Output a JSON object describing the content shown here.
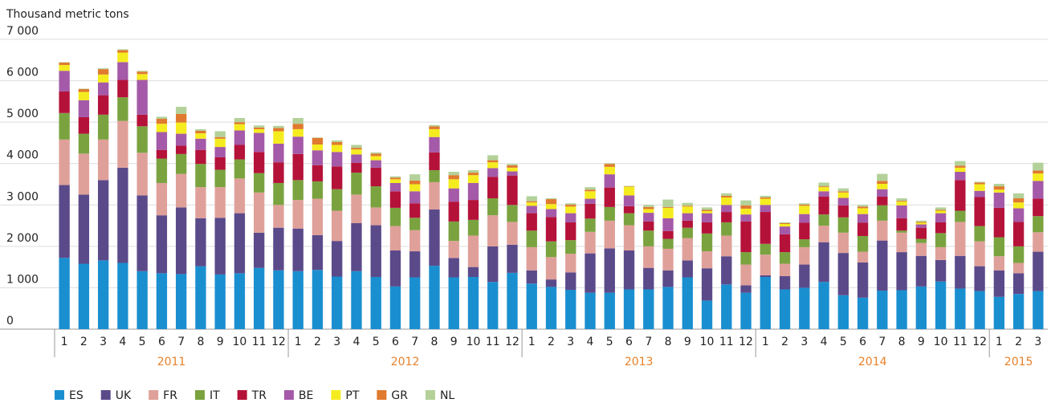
{
  "chart_data": {
    "type": "stacked-bar",
    "y_axis_label": "Thousand metric tons",
    "groups": [
      {
        "label": "2011",
        "categories": [
          "1",
          "2",
          "3",
          "4",
          "5",
          "6",
          "7",
          "8",
          "9",
          "10",
          "11",
          "12"
        ]
      },
      {
        "label": "2012",
        "categories": [
          "1",
          "2",
          "3",
          "4",
          "5",
          "6",
          "7",
          "8",
          "9",
          "10",
          "11",
          "12"
        ]
      },
      {
        "label": "2013",
        "categories": [
          "1",
          "2",
          "3",
          "4",
          "5",
          "6",
          "7",
          "8",
          "9",
          "10",
          "11",
          "12"
        ]
      },
      {
        "label": "2014",
        "categories": [
          "1",
          "2",
          "3",
          "4",
          "5",
          "6",
          "7",
          "8",
          "9",
          "10",
          "11",
          "12"
        ]
      },
      {
        "label": "2015",
        "categories": [
          "1",
          "2",
          "3"
        ]
      }
    ],
    "ylim": [
      0,
      7000
    ],
    "yticks": [
      0,
      {
        "value": 1000,
        "label": "1 000"
      },
      {
        "value": 2000,
        "label": "2 000"
      },
      {
        "value": 3000,
        "label": "3 000"
      },
      {
        "value": 4000,
        "label": "4 000"
      },
      {
        "value": 5000,
        "label": "5 000"
      },
      {
        "value": 6000,
        "label": "6 000"
      },
      {
        "value": 7000,
        "label": "7 000"
      }
    ],
    "grid": true,
    "legend": "bottom-left",
    "series": [
      {
        "name": "ES",
        "color": "#1a8fd0",
        "values": [
          1720,
          1580,
          1660,
          1600,
          1400,
          1350,
          1330,
          1520,
          1320,
          1350,
          1480,
          1420,
          1400,
          1430,
          1270,
          1400,
          1260,
          1030,
          1250,
          1530,
          1250,
          1260,
          1140,
          1360,
          1100,
          1020,
          950,
          880,
          880,
          960,
          960,
          1020,
          1250,
          690,
          1080,
          880,
          1260,
          960,
          1000,
          1140,
          820,
          760,
          930,
          940,
          1030,
          1150,
          980,
          920,
          780,
          850,
          920
        ]
      },
      {
        "name": "UK",
        "color": "#5b4a8a",
        "values": [
          1760,
          1670,
          1940,
          2300,
          1830,
          1400,
          1610,
          1160,
          1370,
          1450,
          850,
          1030,
          1030,
          840,
          860,
          1160,
          1250,
          870,
          630,
          1360,
          470,
          240,
          860,
          680,
          320,
          180,
          420,
          950,
          1070,
          940,
          520,
          400,
          410,
          780,
          680,
          180,
          40,
          320,
          560,
          960,
          1020,
          850,
          1210,
          920,
          740,
          520,
          790,
          600,
          640,
          500,
          950
        ]
      },
      {
        "name": "FR",
        "color": "#e0a09a",
        "values": [
          1100,
          990,
          980,
          1130,
          1030,
          780,
          810,
          750,
          740,
          840,
          970,
          550,
          690,
          880,
          730,
          690,
          430,
          590,
          510,
          660,
          410,
          760,
          750,
          550,
          560,
          540,
          450,
          520,
          670,
          610,
          520,
          520,
          540,
          410,
          500,
          500,
          500,
          300,
          420,
          400,
          490,
          260,
          480,
          470,
          310,
          310,
          820,
          600,
          340,
          250,
          470
        ]
      },
      {
        "name": "IT",
        "color": "#7aa33f",
        "values": [
          640,
          480,
          600,
          570,
          640,
          590,
          480,
          560,
          420,
          460,
          470,
          530,
          480,
          420,
          520,
          530,
          510,
          440,
          300,
          290,
          470,
          380,
          410,
          410,
          400,
          380,
          330,
          320,
          330,
          290,
          380,
          240,
          250,
          430,
          320,
          300,
          260,
          280,
          190,
          270,
          370,
          380,
          370,
          50,
          100,
          340,
          270,
          370,
          460,
          400,
          390
        ]
      },
      {
        "name": "TR",
        "color": "#b5123a",
        "values": [
          520,
          400,
          470,
          420,
          280,
          210,
          200,
          340,
          300,
          350,
          510,
          500,
          630,
          390,
          550,
          240,
          450,
          400,
          350,
          430,
          480,
          480,
          520,
          710,
          420,
          590,
          430,
          360,
          470,
          170,
          220,
          190,
          170,
          270,
          250,
          740,
          770,
          430,
          400,
          430,
          290,
          320,
          210,
          300,
          270,
          260,
          740,
          700,
          710,
          590,
          420
        ]
      },
      {
        "name": "BE",
        "color": "#a45aa8",
        "values": [
          500,
          410,
          310,
          430,
          840,
          430,
          290,
          270,
          250,
          350,
          460,
          450,
          420,
          360,
          350,
          200,
          180,
          200,
          290,
          370,
          320,
          410,
          210,
          100,
          180,
          190,
          220,
          120,
          320,
          260,
          210,
          310,
          180,
          220,
          170,
          170,
          170,
          190,
          210,
          130,
          180,
          210,
          180,
          310,
          80,
          220,
          200,
          150,
          370,
          330,
          430
        ]
      },
      {
        "name": "PT",
        "color": "#f5ec1f",
        "values": [
          140,
          200,
          190,
          230,
          140,
          200,
          270,
          130,
          200,
          150,
          90,
          300,
          180,
          140,
          170,
          120,
          100,
          90,
          170,
          190,
          220,
          190,
          140,
          90,
          80,
          120,
          160,
          180,
          180,
          210,
          90,
          250,
          160,
          50,
          180,
          140,
          150,
          60,
          200,
          100,
          130,
          140,
          130,
          90,
          40,
          60,
          100,
          160,
          70,
          140,
          180
        ]
      },
      {
        "name": "GR",
        "color": "#e07a2f",
        "values": [
          60,
          70,
          130,
          60,
          60,
          120,
          210,
          60,
          40,
          50,
          40,
          80,
          130,
          160,
          70,
          40,
          60,
          40,
          90,
          70,
          100,
          60,
          50,
          60,
          30,
          120,
          50,
          40,
          70,
          10,
          50,
          20,
          20,
          30,
          40,
          80,
          30,
          20,
          30,
          20,
          30,
          40,
          70,
          20,
          20,
          20,
          50,
          40,
          80,
          100,
          70
        ]
      },
      {
        "name": "NL",
        "color": "#b3d199",
        "values": [
          10,
          10,
          20,
          20,
          20,
          50,
          170,
          40,
          140,
          100,
          50,
          50,
          140,
          10,
          40,
          70,
          30,
          30,
          150,
          30,
          80,
          60,
          120,
          30,
          120,
          20,
          30,
          60,
          20,
          10,
          50,
          180,
          70,
          60,
          60,
          120,
          40,
          20,
          30,
          90,
          70,
          40,
          170,
          60,
          30,
          60,
          110,
          20,
          60,
          120,
          190
        ]
      }
    ]
  }
}
